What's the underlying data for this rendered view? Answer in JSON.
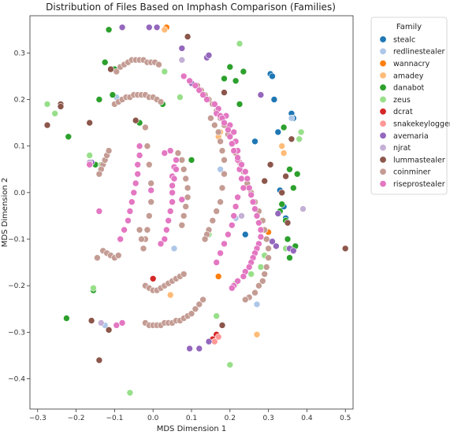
{
  "chart_data": {
    "type": "scatter",
    "title": "Distribution of Files Based on Imphash Comparison (Families)",
    "xlabel": "MDS Dimension 1",
    "ylabel": "MDS Dimension 2",
    "xlim": [
      -0.32,
      0.52
    ],
    "ylim": [
      -0.465,
      0.38
    ],
    "xticks": [
      -0.3,
      -0.2,
      -0.1,
      0.0,
      0.1,
      0.2,
      0.3,
      0.4,
      0.5
    ],
    "xtick_labels": [
      "−0.3",
      "−0.2",
      "−0.1",
      "0.0",
      "0.1",
      "0.2",
      "0.3",
      "0.4",
      "0.5"
    ],
    "yticks": [
      -0.4,
      -0.3,
      -0.2,
      -0.1,
      0.0,
      0.1,
      0.2,
      0.3
    ],
    "ytick_labels": [
      "−0.4",
      "−0.3",
      "−0.2",
      "−0.1",
      "0.0",
      "0.1",
      "0.2",
      "0.3"
    ],
    "grid": false,
    "legend": {
      "title": "Family",
      "placement": "outside upper right"
    },
    "series": [
      {
        "name": "stealc",
        "color": "#1f77b4",
        "x": [
          0.305,
          0.31,
          0.36,
          0.365,
          0.315,
          0.325,
          0.335,
          0.33,
          0.34,
          0.345,
          0.265,
          0.24
        ],
        "y": [
          0.255,
          0.25,
          0.17,
          0.16,
          0.2,
          0.13,
          0.0,
          0.005,
          -0.03,
          -0.055,
          0.11,
          -0.09
        ]
      },
      {
        "name": "redlinestealer",
        "color": "#aec7e8",
        "x": [
          -0.16,
          -0.095,
          0.055,
          0.215,
          0.27,
          -0.125,
          0.36,
          0.175
        ],
        "y": [
          0.065,
          0.205,
          -0.12,
          -0.055,
          -0.24,
          -0.285,
          0.16,
          0.05
        ]
      },
      {
        "name": "wannacry",
        "color": "#ff7f0e",
        "x": [
          0.035,
          0.3,
          0.17
        ],
        "y": [
          0.355,
          -0.085,
          -0.18
        ]
      },
      {
        "name": "amadey",
        "color": "#ffbb78",
        "x": [
          0.03,
          0.175,
          0.17,
          0.335,
          0.34,
          0.045,
          0.27
        ],
        "y": [
          0.35,
          0.13,
          0.12,
          0.1,
          0.085,
          -0.22,
          -0.305
        ]
      },
      {
        "name": "danabot",
        "color": "#2ca02c",
        "x": [
          -0.115,
          0.355,
          0.37,
          0.375,
          0.365,
          0.335,
          0.33,
          0.345,
          0.34,
          0.355,
          0.35,
          0.185,
          0.2,
          0.215,
          0.225,
          -0.14,
          -0.105,
          -0.125,
          -0.1,
          -0.035,
          0.025,
          -0.22,
          -0.15,
          0.1,
          -0.155,
          -0.225,
          0.235
        ],
        "y": [
          0.35,
          -0.14,
          -0.115,
          0.04,
          0.01,
          -0.025,
          -0.04,
          -0.06,
          0.14,
          0.05,
          -0.1,
          0.245,
          0.27,
          0.24,
          0.19,
          0.2,
          0.21,
          0.28,
          0.265,
          0.15,
          0.19,
          0.12,
          0.06,
          0.07,
          -0.21,
          -0.27,
          0.26
        ]
      },
      {
        "name": "zeus",
        "color": "#98df8a",
        "x": [
          0.225,
          0.385,
          0.38,
          0.28,
          0.255,
          0.2,
          -0.06,
          -0.155,
          -0.135,
          -0.165,
          0.07,
          0.03,
          -0.275,
          -0.255,
          0.165,
          0.215,
          0.29,
          0.145,
          0.345
        ],
        "y": [
          0.32,
          0.13,
          0.115,
          -0.16,
          -0.175,
          -0.37,
          -0.43,
          -0.205,
          0.06,
          0.08,
          0.205,
          0.26,
          0.19,
          0.17,
          -0.265,
          -0.195,
          -0.135,
          -0.09,
          -0.12
        ]
      },
      {
        "name": "dcrat",
        "color": "#d62728",
        "x": [
          0.0,
          0.155,
          0.165
        ],
        "y": [
          -0.185,
          -0.315,
          -0.305
        ]
      },
      {
        "name": "snakekeylogger",
        "color": "#ff9896",
        "x": [
          0.16,
          0.17
        ],
        "y": [
          -0.32,
          -0.31
        ]
      },
      {
        "name": "avemaria",
        "color": "#9467bd",
        "x": [
          -0.08,
          0.01,
          -0.01,
          0.075,
          0.095,
          0.12,
          0.145,
          0.14,
          0.31,
          0.32,
          -0.16,
          0.325,
          0.28,
          0.145,
          0.1,
          0.355,
          0.365
        ],
        "y": [
          0.355,
          0.355,
          0.355,
          0.31,
          -0.335,
          -0.335,
          -0.32,
          0.29,
          -0.105,
          -0.115,
          0.065,
          -0.045,
          0.21,
          0.295,
          0.235,
          -0.12,
          -0.125
        ]
      },
      {
        "name": "njrat",
        "color": "#c5b0d5",
        "x": [
          0.39,
          0.075,
          -0.135,
          -0.165,
          0.23
        ],
        "y": [
          -0.035,
          0.285,
          -0.28,
          0.065,
          -0.05
        ]
      },
      {
        "name": "lummastealer",
        "color": "#8c564b",
        "x": [
          0.5,
          -0.275,
          -0.165,
          -0.24,
          -0.24,
          -0.11,
          -0.14,
          -0.115,
          0.09,
          0.18,
          -0.145,
          -0.16,
          0.345,
          0.335,
          0.35,
          0.36,
          0.29,
          0.305,
          -0.045,
          0.185
        ],
        "y": [
          -0.12,
          0.145,
          0.15,
          0.19,
          0.185,
          0.265,
          -0.36,
          -0.295,
          0.335,
          -0.285,
          -0.14,
          -0.275,
          0.035,
          0.0,
          -0.065,
          0.115,
          0.025,
          0.06,
          0.155,
          0.215
        ]
      },
      {
        "name": "coinminer",
        "color": "#c49c94",
        "x": [
          -0.095,
          -0.085,
          -0.075,
          -0.065,
          -0.055,
          -0.045,
          -0.035,
          -0.025,
          -0.015,
          -0.005,
          0.005,
          0.015,
          -0.1,
          -0.09,
          -0.08,
          -0.07,
          -0.06,
          -0.05,
          -0.04,
          -0.03,
          -0.02,
          -0.01,
          0.0,
          0.01,
          0.02,
          -0.13,
          -0.125,
          -0.12,
          -0.115,
          -0.135,
          -0.14,
          0.115,
          0.125,
          0.135,
          0.145,
          0.155,
          0.165,
          0.175,
          0.185,
          0.195,
          0.205,
          0.215,
          0.225,
          0.235,
          0.245,
          0.255,
          0.265,
          0.275,
          0.285,
          0.29,
          0.295,
          0.3,
          0.3,
          0.295,
          0.29,
          0.285,
          0.275,
          0.265,
          0.25,
          0.24,
          0.15,
          0.16,
          0.17,
          0.175,
          0.18,
          0.185,
          0.185,
          0.18,
          0.175,
          0.165,
          0.155,
          0.145,
          0.14,
          0.135,
          0.065,
          0.075,
          0.08,
          0.085,
          0.09,
          0.09,
          0.085,
          0.08,
          0.075,
          -0.02,
          -0.015,
          -0.01,
          -0.005,
          -0.005,
          -0.01,
          -0.015,
          -0.02,
          -0.025,
          -0.03,
          -0.035,
          -0.02,
          -0.01,
          0.0,
          0.01,
          0.02,
          0.03,
          0.04,
          0.05,
          0.06,
          0.07,
          0.08,
          -0.02,
          -0.01,
          0.0,
          0.01,
          0.02,
          0.03,
          0.04,
          0.05,
          0.06,
          0.07,
          0.08,
          0.09,
          0.1,
          0.11,
          0.12,
          0.13,
          -0.13,
          -0.12,
          -0.11,
          -0.145,
          -0.1,
          -0.09
        ],
        "y": [
          0.26,
          0.27,
          0.275,
          0.28,
          0.285,
          0.285,
          0.285,
          0.285,
          0.28,
          0.28,
          0.28,
          0.275,
          0.19,
          0.195,
          0.2,
          0.205,
          0.205,
          0.21,
          0.21,
          0.21,
          0.21,
          0.205,
          0.205,
          0.2,
          0.195,
          0.06,
          0.07,
          0.08,
          0.09,
          0.05,
          0.04,
          0.23,
          0.22,
          0.21,
          0.2,
          0.19,
          0.175,
          0.16,
          0.145,
          0.125,
          0.105,
          0.085,
          0.065,
          0.045,
          0.02,
          0.0,
          -0.02,
          -0.04,
          -0.06,
          -0.08,
          -0.1,
          -0.12,
          -0.14,
          -0.16,
          -0.175,
          -0.19,
          -0.2,
          -0.215,
          -0.225,
          -0.23,
          0.16,
          0.145,
          0.13,
          0.11,
          0.09,
          0.07,
          0.04,
          0.01,
          -0.02,
          -0.04,
          -0.06,
          -0.08,
          -0.09,
          -0.1,
          0.085,
          0.07,
          0.05,
          0.03,
          0.01,
          -0.01,
          -0.03,
          -0.05,
          -0.07,
          0.14,
          0.1,
          0.06,
          0.02,
          -0.02,
          -0.05,
          -0.08,
          -0.1,
          -0.12,
          -0.1,
          -0.08,
          -0.2,
          -0.205,
          -0.21,
          -0.21,
          -0.205,
          -0.2,
          -0.195,
          -0.19,
          -0.185,
          -0.18,
          -0.175,
          -0.28,
          -0.285,
          -0.285,
          -0.285,
          -0.285,
          -0.28,
          -0.28,
          -0.28,
          -0.275,
          -0.275,
          -0.27,
          -0.265,
          -0.26,
          -0.25,
          -0.24,
          -0.23,
          -0.125,
          -0.13,
          -0.135,
          -0.14,
          -0.14,
          -0.135
        ]
      },
      {
        "name": "riseprostealer",
        "color": "#e377c2",
        "x": [
          -0.035,
          -0.035,
          -0.04,
          -0.04,
          -0.045,
          -0.05,
          -0.055,
          -0.06,
          -0.065,
          -0.075,
          -0.085,
          0.05,
          0.05,
          0.055,
          0.06,
          0.06,
          0.055,
          0.05,
          0.05,
          0.045,
          0.04,
          0.035,
          0.03,
          0.02,
          0.08,
          0.095,
          0.11,
          0.12,
          0.13,
          0.14,
          0.16,
          0.17,
          0.19,
          0.2,
          0.21,
          0.215,
          0.22,
          0.22,
          0.225,
          0.23,
          0.235,
          0.22,
          0.215,
          0.21,
          0.205,
          0.195,
          0.185,
          0.175,
          0.165,
          -0.14,
          -0.08,
          -0.095,
          -0.005,
          0.03,
          0.045,
          0.165,
          0.175,
          0.18,
          0.185,
          0.195,
          0.2,
          0.205,
          0.21,
          0.22,
          0.23,
          0.24,
          0.245,
          0.25,
          0.255,
          0.26,
          0.265,
          0.27,
          0.275,
          0.28,
          0.28,
          0.275,
          0.27,
          0.265,
          0.26,
          0.255,
          0.25,
          0.24,
          0.235,
          0.22,
          0.21,
          0.205,
          0.075,
          -0.165
        ],
        "y": [
          0.1,
          0.08,
          0.06,
          0.04,
          0.02,
          0.0,
          -0.02,
          -0.04,
          -0.06,
          -0.08,
          -0.1,
          0.015,
          0.035,
          0.055,
          0.07,
          0.05,
          0.03,
          0.0,
          -0.02,
          -0.04,
          -0.06,
          -0.08,
          -0.1,
          -0.11,
          0.25,
          0.24,
          0.23,
          0.22,
          0.21,
          0.2,
          0.19,
          0.18,
          0.165,
          0.145,
          0.13,
          0.11,
          0.09,
          0.07,
          0.05,
          0.03,
          0.01,
          -0.01,
          -0.03,
          -0.05,
          -0.07,
          -0.09,
          -0.11,
          -0.13,
          -0.15,
          -0.04,
          -0.28,
          -0.285,
          0.005,
          0.085,
          0.09,
          0.17,
          0.165,
          0.16,
          0.15,
          0.135,
          0.12,
          0.105,
          0.09,
          0.075,
          0.06,
          0.045,
          0.03,
          0.01,
          -0.005,
          -0.02,
          -0.035,
          -0.05,
          -0.065,
          -0.08,
          -0.095,
          -0.11,
          -0.12,
          -0.13,
          -0.14,
          -0.15,
          -0.16,
          -0.17,
          -0.18,
          -0.19,
          -0.2,
          -0.205,
          -0.015,
          0.06
        ]
      }
    ]
  }
}
